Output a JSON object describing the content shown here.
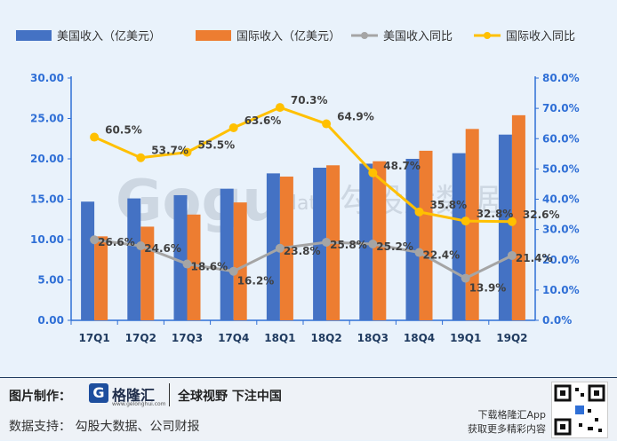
{
  "chart_data": {
    "type": "bar",
    "categories": [
      "17Q1",
      "17Q2",
      "17Q3",
      "17Q4",
      "18Q1",
      "18Q2",
      "18Q3",
      "18Q4",
      "19Q1",
      "19Q2"
    ],
    "series": [
      {
        "name": "美国收入（亿美元）",
        "kind": "bar",
        "axis": "left",
        "color": "#4472c4",
        "values": [
          14.7,
          15.1,
          15.5,
          16.3,
          18.2,
          18.9,
          19.4,
          20.0,
          20.7,
          23.0
        ]
      },
      {
        "name": "国际收入（亿美元）",
        "kind": "bar",
        "axis": "left",
        "color": "#ed7d31",
        "values": [
          10.4,
          11.6,
          13.1,
          14.6,
          17.8,
          19.2,
          19.7,
          21.0,
          23.7,
          25.4
        ]
      },
      {
        "name": "美国收入同比",
        "kind": "line",
        "axis": "right",
        "color": "#a5a5a5",
        "values": [
          26.6,
          24.6,
          18.6,
          16.2,
          23.8,
          25.8,
          25.2,
          22.4,
          13.9,
          21.4
        ],
        "labels": [
          "26.6%",
          "24.6%",
          "18.6%",
          "16.2%",
          "23.8%",
          "25.8%",
          "25.2%",
          "22.4%",
          "13.9%",
          "21.4%"
        ]
      },
      {
        "name": "国际收入同比",
        "kind": "line",
        "axis": "right",
        "color": "#ffc000",
        "values": [
          60.5,
          53.7,
          55.5,
          63.6,
          70.3,
          64.9,
          48.7,
          35.8,
          32.8,
          32.6
        ],
        "labels": [
          "60.5%",
          "53.7%",
          "55.5%",
          "63.6%",
          "70.3%",
          "64.9%",
          "48.7%",
          "35.8%",
          "32.8%",
          "32.6%"
        ]
      }
    ],
    "ylim_left": [
      0,
      30
    ],
    "yticks_left": [
      "0.00",
      "5.00",
      "10.00",
      "15.00",
      "20.00",
      "25.00",
      "30.00"
    ],
    "ylim_right": [
      0,
      80
    ],
    "yticks_right": [
      "0.0%",
      "10.0%",
      "20.0%",
      "30.0%",
      "40.0%",
      "50.0%",
      "60.0%",
      "70.0%",
      "80.0%"
    ],
    "grid": false,
    "legend_position": "top"
  },
  "watermark": "Gogu data 勾股大数据",
  "footer": {
    "credit_label": "图片制作：",
    "brand": "格隆汇",
    "brand_url": "www.gelonghui.com",
    "slogan": "全球视野 下注中国",
    "source": "数据支持：  勾股大数据、公司财报",
    "app_line1": "下载格隆汇App",
    "app_line2": "获取更多精彩内容"
  }
}
